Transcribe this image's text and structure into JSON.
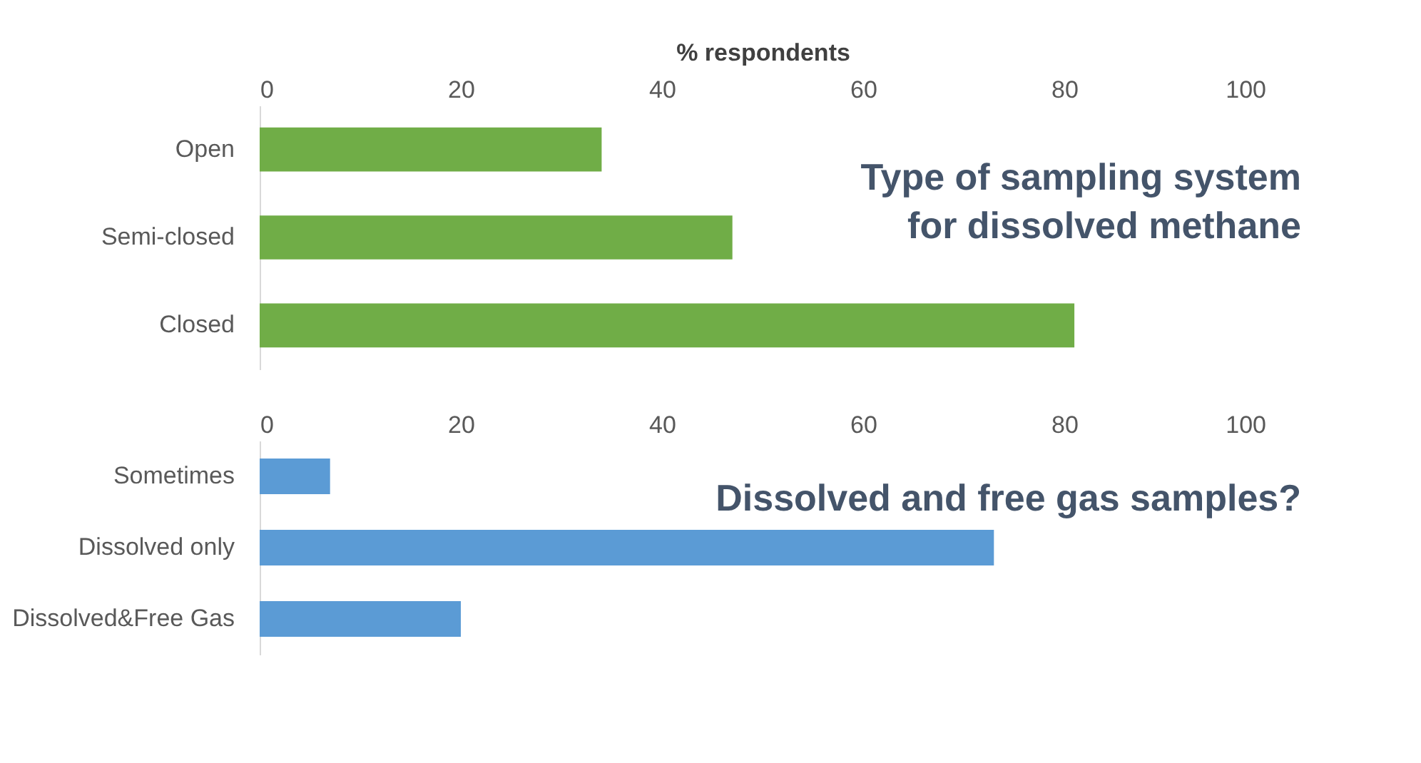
{
  "chart_data": [
    {
      "type": "bar",
      "orientation": "horizontal",
      "title": "Type of sampling system for dissolved methane",
      "xlabel": "% respondents",
      "categories": [
        "Open",
        "Semi-closed",
        "Closed"
      ],
      "values": [
        34,
        47,
        81
      ],
      "color": "#70ad47",
      "xlim": [
        0,
        100
      ],
      "xticks": [
        0,
        20,
        40,
        60,
        80,
        100
      ]
    },
    {
      "type": "bar",
      "orientation": "horizontal",
      "title": "Dissolved and free gas samples?",
      "categories": [
        "Sometimes",
        "Dissolved only",
        "Dissolved&Free Gas"
      ],
      "values": [
        7,
        73,
        20
      ],
      "color": "#5b9bd5",
      "xlim": [
        0,
        100
      ],
      "xticks": [
        0,
        20,
        40,
        60,
        80,
        100
      ]
    }
  ]
}
